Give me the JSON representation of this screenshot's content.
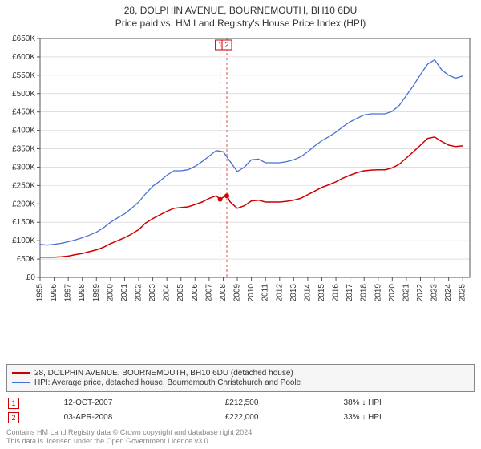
{
  "title": "28, DOLPHIN AVENUE, BOURNEMOUTH, BH10 6DU",
  "subtitle": "Price paid vs. HM Land Registry's House Price Index (HPI)",
  "chart": {
    "type": "line",
    "background_color": "#ffffff",
    "grid_color": "#cccccc",
    "axis_color": "#555555",
    "axis_fontsize": 10,
    "x": {
      "min": 1995,
      "max": 2025.5,
      "ticks": [
        1995,
        1996,
        1997,
        1998,
        1999,
        2000,
        2001,
        2002,
        2003,
        2004,
        2005,
        2006,
        2007,
        2008,
        2009,
        2010,
        2011,
        2012,
        2013,
        2014,
        2015,
        2016,
        2017,
        2018,
        2019,
        2020,
        2021,
        2022,
        2023,
        2024,
        2025
      ],
      "tick_labels": [
        "1995",
        "1996",
        "1997",
        "1998",
        "1999",
        "2000",
        "2001",
        "2002",
        "2003",
        "2004",
        "2005",
        "2006",
        "2007",
        "2008",
        "2009",
        "2010",
        "2011",
        "2012",
        "2013",
        "2014",
        "2015",
        "2016",
        "2017",
        "2018",
        "2019",
        "2020",
        "2021",
        "2022",
        "2023",
        "2024",
        "2025"
      ],
      "rotate": -90
    },
    "y": {
      "min": 0,
      "max": 650000,
      "ticks": [
        0,
        50000,
        100000,
        150000,
        200000,
        250000,
        300000,
        350000,
        400000,
        450000,
        500000,
        550000,
        600000,
        650000
      ],
      "tick_labels": [
        "£0",
        "£50K",
        "£100K",
        "£150K",
        "£200K",
        "£250K",
        "£300K",
        "£350K",
        "£400K",
        "£450K",
        "£500K",
        "£550K",
        "£600K",
        "£650K"
      ]
    },
    "series": [
      {
        "name": "28, DOLPHIN AVENUE, BOURNEMOUTH, BH10 6DU (detached house)",
        "color": "#cc0000",
        "width": 1.5,
        "points": [
          [
            1995.0,
            55000
          ],
          [
            1995.5,
            55000
          ],
          [
            1996.0,
            55000
          ],
          [
            1996.5,
            56000
          ],
          [
            1997.0,
            58000
          ],
          [
            1997.5,
            62000
          ],
          [
            1998.0,
            65000
          ],
          [
            1998.5,
            70000
          ],
          [
            1999.0,
            75000
          ],
          [
            1999.5,
            82000
          ],
          [
            2000.0,
            92000
          ],
          [
            2000.5,
            100000
          ],
          [
            2001.0,
            108000
          ],
          [
            2001.5,
            118000
          ],
          [
            2002.0,
            130000
          ],
          [
            2002.5,
            148000
          ],
          [
            2003.0,
            160000
          ],
          [
            2003.5,
            170000
          ],
          [
            2004.0,
            180000
          ],
          [
            2004.5,
            188000
          ],
          [
            2005.0,
            190000
          ],
          [
            2005.5,
            192000
          ],
          [
            2006.0,
            198000
          ],
          [
            2006.5,
            205000
          ],
          [
            2007.0,
            215000
          ],
          [
            2007.5,
            222000
          ],
          [
            2007.78,
            212500
          ],
          [
            2008.0,
            218000
          ],
          [
            2008.26,
            222000
          ],
          [
            2008.5,
            205000
          ],
          [
            2009.0,
            188000
          ],
          [
            2009.5,
            195000
          ],
          [
            2010.0,
            208000
          ],
          [
            2010.5,
            210000
          ],
          [
            2011.0,
            205000
          ],
          [
            2011.5,
            205000
          ],
          [
            2012.0,
            205000
          ],
          [
            2012.5,
            207000
          ],
          [
            2013.0,
            210000
          ],
          [
            2013.5,
            215000
          ],
          [
            2014.0,
            225000
          ],
          [
            2014.5,
            235000
          ],
          [
            2015.0,
            245000
          ],
          [
            2015.5,
            252000
          ],
          [
            2016.0,
            260000
          ],
          [
            2016.5,
            270000
          ],
          [
            2017.0,
            278000
          ],
          [
            2017.5,
            285000
          ],
          [
            2018.0,
            290000
          ],
          [
            2018.5,
            292000
          ],
          [
            2019.0,
            293000
          ],
          [
            2019.5,
            293000
          ],
          [
            2020.0,
            298000
          ],
          [
            2020.5,
            308000
          ],
          [
            2021.0,
            325000
          ],
          [
            2021.5,
            342000
          ],
          [
            2022.0,
            360000
          ],
          [
            2022.5,
            378000
          ],
          [
            2023.0,
            382000
          ],
          [
            2023.5,
            370000
          ],
          [
            2024.0,
            360000
          ],
          [
            2024.5,
            356000
          ],
          [
            2025.0,
            358000
          ]
        ]
      },
      {
        "name": "HPI: Average price, detached house, Bournemouth Christchurch and Poole",
        "color": "#4a6fd4",
        "width": 1.3,
        "points": [
          [
            1995.0,
            90000
          ],
          [
            1995.5,
            88000
          ],
          [
            1996.0,
            90000
          ],
          [
            1996.5,
            93000
          ],
          [
            1997.0,
            97000
          ],
          [
            1997.5,
            102000
          ],
          [
            1998.0,
            108000
          ],
          [
            1998.5,
            115000
          ],
          [
            1999.0,
            123000
          ],
          [
            1999.5,
            135000
          ],
          [
            2000.0,
            150000
          ],
          [
            2000.5,
            162000
          ],
          [
            2001.0,
            173000
          ],
          [
            2001.5,
            188000
          ],
          [
            2002.0,
            205000
          ],
          [
            2002.5,
            228000
          ],
          [
            2003.0,
            248000
          ],
          [
            2003.5,
            262000
          ],
          [
            2004.0,
            278000
          ],
          [
            2004.5,
            290000
          ],
          [
            2005.0,
            290000
          ],
          [
            2005.5,
            293000
          ],
          [
            2006.0,
            302000
          ],
          [
            2006.5,
            315000
          ],
          [
            2007.0,
            330000
          ],
          [
            2007.5,
            345000
          ],
          [
            2008.0,
            342000
          ],
          [
            2008.5,
            315000
          ],
          [
            2009.0,
            288000
          ],
          [
            2009.5,
            300000
          ],
          [
            2010.0,
            320000
          ],
          [
            2010.5,
            322000
          ],
          [
            2011.0,
            312000
          ],
          [
            2011.5,
            312000
          ],
          [
            2012.0,
            312000
          ],
          [
            2012.5,
            315000
          ],
          [
            2013.0,
            320000
          ],
          [
            2013.5,
            328000
          ],
          [
            2014.0,
            342000
          ],
          [
            2014.5,
            358000
          ],
          [
            2015.0,
            372000
          ],
          [
            2015.5,
            383000
          ],
          [
            2016.0,
            395000
          ],
          [
            2016.5,
            410000
          ],
          [
            2017.0,
            423000
          ],
          [
            2017.5,
            433000
          ],
          [
            2018.0,
            442000
          ],
          [
            2018.5,
            445000
          ],
          [
            2019.0,
            445000
          ],
          [
            2019.5,
            445000
          ],
          [
            2020.0,
            452000
          ],
          [
            2020.5,
            468000
          ],
          [
            2021.0,
            495000
          ],
          [
            2021.5,
            522000
          ],
          [
            2022.0,
            552000
          ],
          [
            2022.5,
            580000
          ],
          [
            2023.0,
            592000
          ],
          [
            2023.5,
            565000
          ],
          [
            2024.0,
            550000
          ],
          [
            2024.5,
            542000
          ],
          [
            2025.0,
            548000
          ]
        ]
      }
    ],
    "sale_points": {
      "color": "#cc0000",
      "radius": 3,
      "items": [
        {
          "x": 2007.78,
          "y": 212500
        },
        {
          "x": 2008.26,
          "y": 222000
        }
      ]
    },
    "markers": {
      "line_color": "#e64d4d",
      "dash": "3,3",
      "items": [
        {
          "id": "1",
          "x": 2007.78
        },
        {
          "id": "2",
          "x": 2008.26
        }
      ]
    }
  },
  "legend": {
    "rows": [
      {
        "color": "#cc0000",
        "label": "28, DOLPHIN AVENUE, BOURNEMOUTH, BH10 6DU (detached house)"
      },
      {
        "color": "#4a6fd4",
        "label": "HPI: Average price, detached house, Bournemouth Christchurch and Poole"
      }
    ]
  },
  "markers_table": [
    {
      "id": "1",
      "date": "12-OCT-2007",
      "price": "£212,500",
      "delta": "38% ↓ HPI"
    },
    {
      "id": "2",
      "date": "03-APR-2008",
      "price": "£222,000",
      "delta": "33% ↓ HPI"
    }
  ],
  "copyright_line1": "Contains HM Land Registry data © Crown copyright and database right 2024.",
  "copyright_line2": "This data is licensed under the Open Government Licence v3.0."
}
